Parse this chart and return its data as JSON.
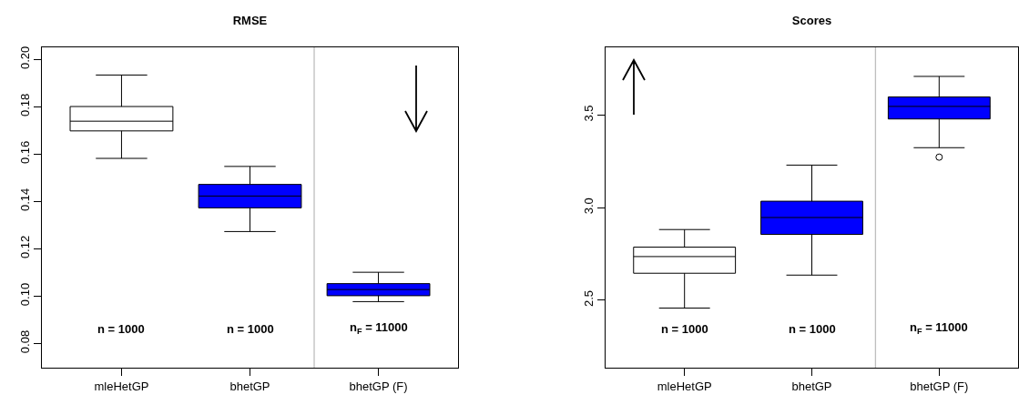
{
  "chart_data": [
    {
      "type": "box",
      "title": "RMSE",
      "categories": [
        "mleHetGP",
        "bhetGP",
        "bhetGP (F)"
      ],
      "colors": [
        "#ffffff",
        "#0000ff",
        "#0000ff"
      ],
      "boxes": [
        {
          "low": 0.1582,
          "q1": 0.1698,
          "median": 0.1739,
          "q3": 0.1801,
          "high": 0.1934
        },
        {
          "low": 0.1273,
          "q1": 0.1373,
          "median": 0.1423,
          "q3": 0.1472,
          "high": 0.1548
        },
        {
          "low": 0.0977,
          "q1": 0.1002,
          "median": 0.1028,
          "q3": 0.1053,
          "high": 0.1101
        }
      ],
      "ylim": [
        0.0698,
        0.2051
      ],
      "yticks": [
        {
          "value": 0.08,
          "label": "0.08"
        },
        {
          "value": 0.1,
          "label": "0.10"
        },
        {
          "value": 0.12,
          "label": "0.12"
        },
        {
          "value": 0.14,
          "label": "0.14"
        },
        {
          "value": 0.16,
          "label": "0.16"
        },
        {
          "value": 0.18,
          "label": "0.18"
        },
        {
          "value": 0.2,
          "label": "0.20"
        }
      ],
      "grid": false,
      "annotations": [
        "n = 1000",
        "n = 1000",
        "n$_{F}$ = 11000"
      ]
    },
    {
      "type": "box",
      "title": "Scores",
      "categories": [
        "mleHetGP",
        "bhetGP",
        "bhetGP (F)"
      ],
      "colors": [
        "#ffffff",
        "#0000ff",
        "#0000ff"
      ],
      "boxes": [
        {
          "low": 2.458,
          "q1": 2.646,
          "median": 2.736,
          "q3": 2.787,
          "high": 2.882
        },
        {
          "low": 2.636,
          "q1": 2.856,
          "median": 2.947,
          "q3": 3.035,
          "high": 3.23
        },
        {
          "low": 3.324,
          "q1": 3.479,
          "median": 3.547,
          "q3": 3.598,
          "high": 3.709,
          "outliers": [
            3.273
          ]
        }
      ],
      "ylim": [
        2.136,
        3.866
      ],
      "yticks": [
        {
          "value": 2.5,
          "label": "2.5"
        },
        {
          "value": 3,
          "label": "3.0"
        },
        {
          "value": 3.5,
          "label": "3.5"
        }
      ],
      "grid": false,
      "annotations": [
        "n = 1000",
        "n = 1000",
        "n$_{F}$ = 11000"
      ]
    }
  ]
}
